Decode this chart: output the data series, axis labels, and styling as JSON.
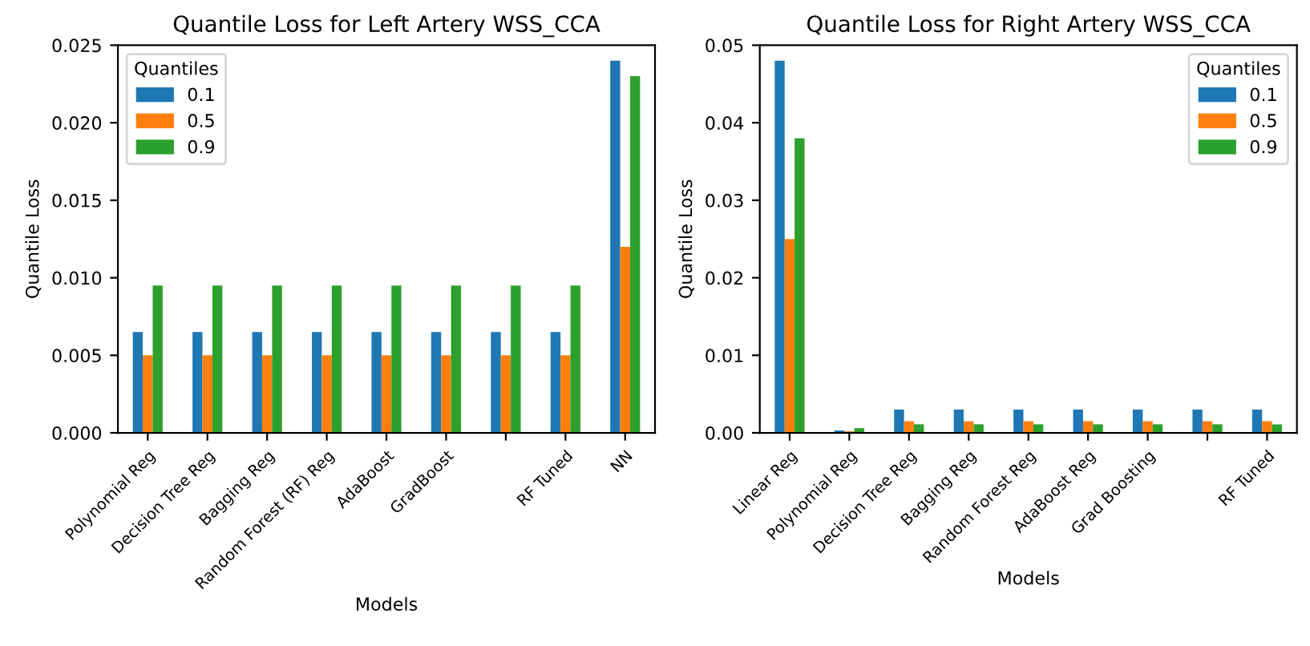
{
  "chart_data": [
    {
      "type": "bar",
      "title": "Quantile Loss for Left Artery WSS_CCA",
      "xlabel": "Models",
      "ylabel": "Quantile Loss",
      "legend_title": "Quantiles",
      "legend": "top left",
      "grid": false,
      "categories": [
        "Polynomial Reg",
        "Decision Tree Reg",
        "Bagging Reg",
        "Random Forest (RF) Reg",
        "AdaBoost",
        "GradBoost",
        null,
        "RF Tuned",
        "NN"
      ],
      "ylim": [
        0,
        0.025
      ],
      "yticks": [
        {
          "value": 0,
          "label": "0.000"
        },
        {
          "value": 0.005,
          "label": "0.005"
        },
        {
          "value": 0.01,
          "label": "0.010"
        },
        {
          "value": 0.015,
          "label": "0.015"
        },
        {
          "value": 0.02,
          "label": "0.020"
        },
        {
          "value": 0.025,
          "label": "0.025"
        }
      ],
      "series": [
        {
          "name": "0.1",
          "color": "#1f77b4",
          "values": [
            0.0065,
            0.0065,
            0.0065,
            0.0065,
            0.0065,
            0.0065,
            0.0065,
            0.0065,
            0.024
          ]
        },
        {
          "name": "0.5",
          "color": "#ff7f0e",
          "values": [
            0.005,
            0.005,
            0.005,
            0.005,
            0.005,
            0.005,
            0.005,
            0.005,
            0.012
          ]
        },
        {
          "name": "0.9",
          "color": "#2ca02c",
          "values": [
            0.0095,
            0.0095,
            0.0095,
            0.0095,
            0.0095,
            0.0095,
            0.0095,
            0.0095,
            0.023
          ]
        }
      ]
    },
    {
      "type": "bar",
      "title": "Quantile Loss for Right Artery WSS_CCA",
      "xlabel": "Models",
      "ylabel": "Quantile Loss",
      "legend_title": "Quantiles",
      "legend": "top right",
      "grid": false,
      "categories": [
        "Linear Reg",
        "Polynomial Reg",
        "Decision Tree Reg",
        "Bagging Reg",
        "Random Forest Reg",
        "AdaBoost Reg",
        "Grad Boosting",
        null,
        "RF Tuned"
      ],
      "ylim": [
        0,
        0.05
      ],
      "yticks": [
        {
          "value": 0,
          "label": "0.00"
        },
        {
          "value": 0.01,
          "label": "0.01"
        },
        {
          "value": 0.02,
          "label": "0.02"
        },
        {
          "value": 0.03,
          "label": "0.03"
        },
        {
          "value": 0.04,
          "label": "0.04"
        },
        {
          "value": 0.05,
          "label": "0.05"
        }
      ],
      "series": [
        {
          "name": "0.1",
          "color": "#1f77b4",
          "values": [
            0.048,
            0.0003,
            0.003,
            0.003,
            0.003,
            0.003,
            0.003,
            0.003,
            0.003
          ]
        },
        {
          "name": "0.5",
          "color": "#ff7f0e",
          "values": [
            0.025,
            0.0002,
            0.0015,
            0.0015,
            0.0015,
            0.0015,
            0.0015,
            0.0015,
            0.0015
          ]
        },
        {
          "name": "0.9",
          "color": "#2ca02c",
          "values": [
            0.038,
            0.0006,
            0.0011,
            0.0011,
            0.0011,
            0.0011,
            0.0011,
            0.0011,
            0.0011
          ]
        }
      ]
    }
  ]
}
